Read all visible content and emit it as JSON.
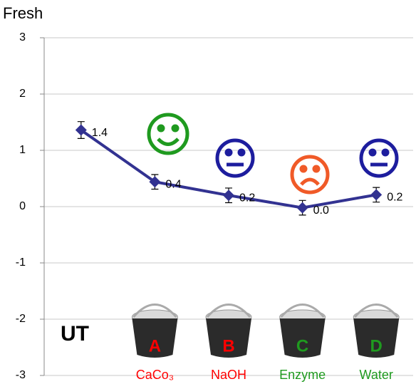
{
  "chart_data": {
    "type": "line",
    "title": "Fresh",
    "categories": [
      "UT",
      "CaCo₃",
      "NaOH",
      "Enzyme",
      "Water"
    ],
    "category_colors": [
      "#000000",
      "#ff0000",
      "#ff0000",
      "#1f9a1f",
      "#1f9a1f"
    ],
    "bucket_labels": [
      "A",
      "B",
      "C",
      "D"
    ],
    "values": [
      1.36,
      0.44,
      0.2,
      -0.02,
      0.21
    ],
    "value_labels": [
      "1.4",
      "0.4",
      "0.2",
      "0.0",
      "0.2"
    ],
    "errors": [
      0.15,
      0.13,
      0.13,
      0.13,
      0.13
    ],
    "color": "#323291",
    "ylim": [
      -3,
      3
    ],
    "yticks": [
      -3,
      -2,
      -1,
      0,
      1,
      2,
      3
    ],
    "grid": true
  }
}
